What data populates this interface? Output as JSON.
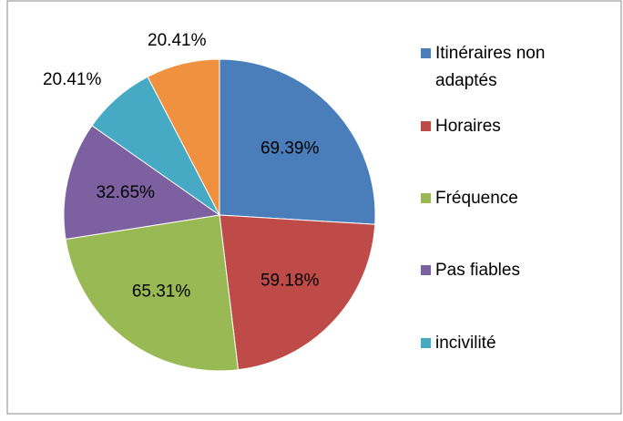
{
  "chart_data": {
    "type": "pie",
    "categories": [
      "Itinéraires non adaptés",
      "Horaires",
      "Fréquence",
      "Pas fiables",
      "incivilité",
      null
    ],
    "values": [
      69.39,
      59.18,
      65.31,
      32.65,
      20.41,
      20.41
    ],
    "value_labels": [
      "69.39%",
      "59.18%",
      "65.31%",
      "32.65%",
      "20.41%",
      "20.41%"
    ],
    "colors": [
      "#4a7ebb",
      "#be4b48",
      "#98b954",
      "#7d60a0",
      "#46aac5",
      "#f0913f"
    ],
    "legend": "right"
  }
}
